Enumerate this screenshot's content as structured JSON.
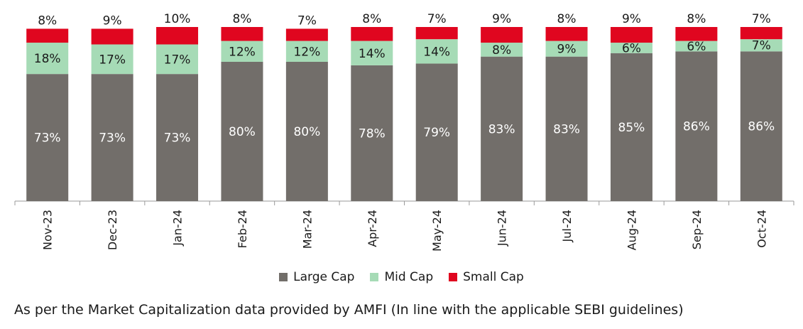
{
  "chart_data": {
    "type": "bar",
    "stacked": true,
    "categories": [
      "Nov-23",
      "Dec-23",
      "Jan-24",
      "Feb-24",
      "Mar-24",
      "Apr-24",
      "May-24",
      "Jun-24",
      "Jul-24",
      "Aug-24",
      "Sep-24",
      "Oct-24"
    ],
    "series": [
      {
        "name": "Large Cap",
        "color": "#726e6a",
        "label_color": "#ffffff",
        "values": [
          73,
          73,
          73,
          80,
          80,
          78,
          79,
          83,
          83,
          85,
          86,
          86
        ]
      },
      {
        "name": "Mid Cap",
        "color": "#a6dbb6",
        "label_color": "#1a1a1a",
        "values": [
          18,
          17,
          17,
          12,
          12,
          14,
          14,
          8,
          9,
          6,
          6,
          7
        ]
      },
      {
        "name": "Small Cap",
        "color": "#e0061f",
        "label_color": "#1a1a1a",
        "values": [
          8,
          9,
          10,
          8,
          7,
          8,
          7,
          9,
          8,
          9,
          8,
          7
        ]
      }
    ],
    "value_suffix": "%",
    "ylim": [
      0,
      100
    ],
    "legend_position": "bottom",
    "grid": false
  },
  "footnote": "As per the Market Capitalization data provided by AMFI (In line with the applicable SEBI guidelines)"
}
